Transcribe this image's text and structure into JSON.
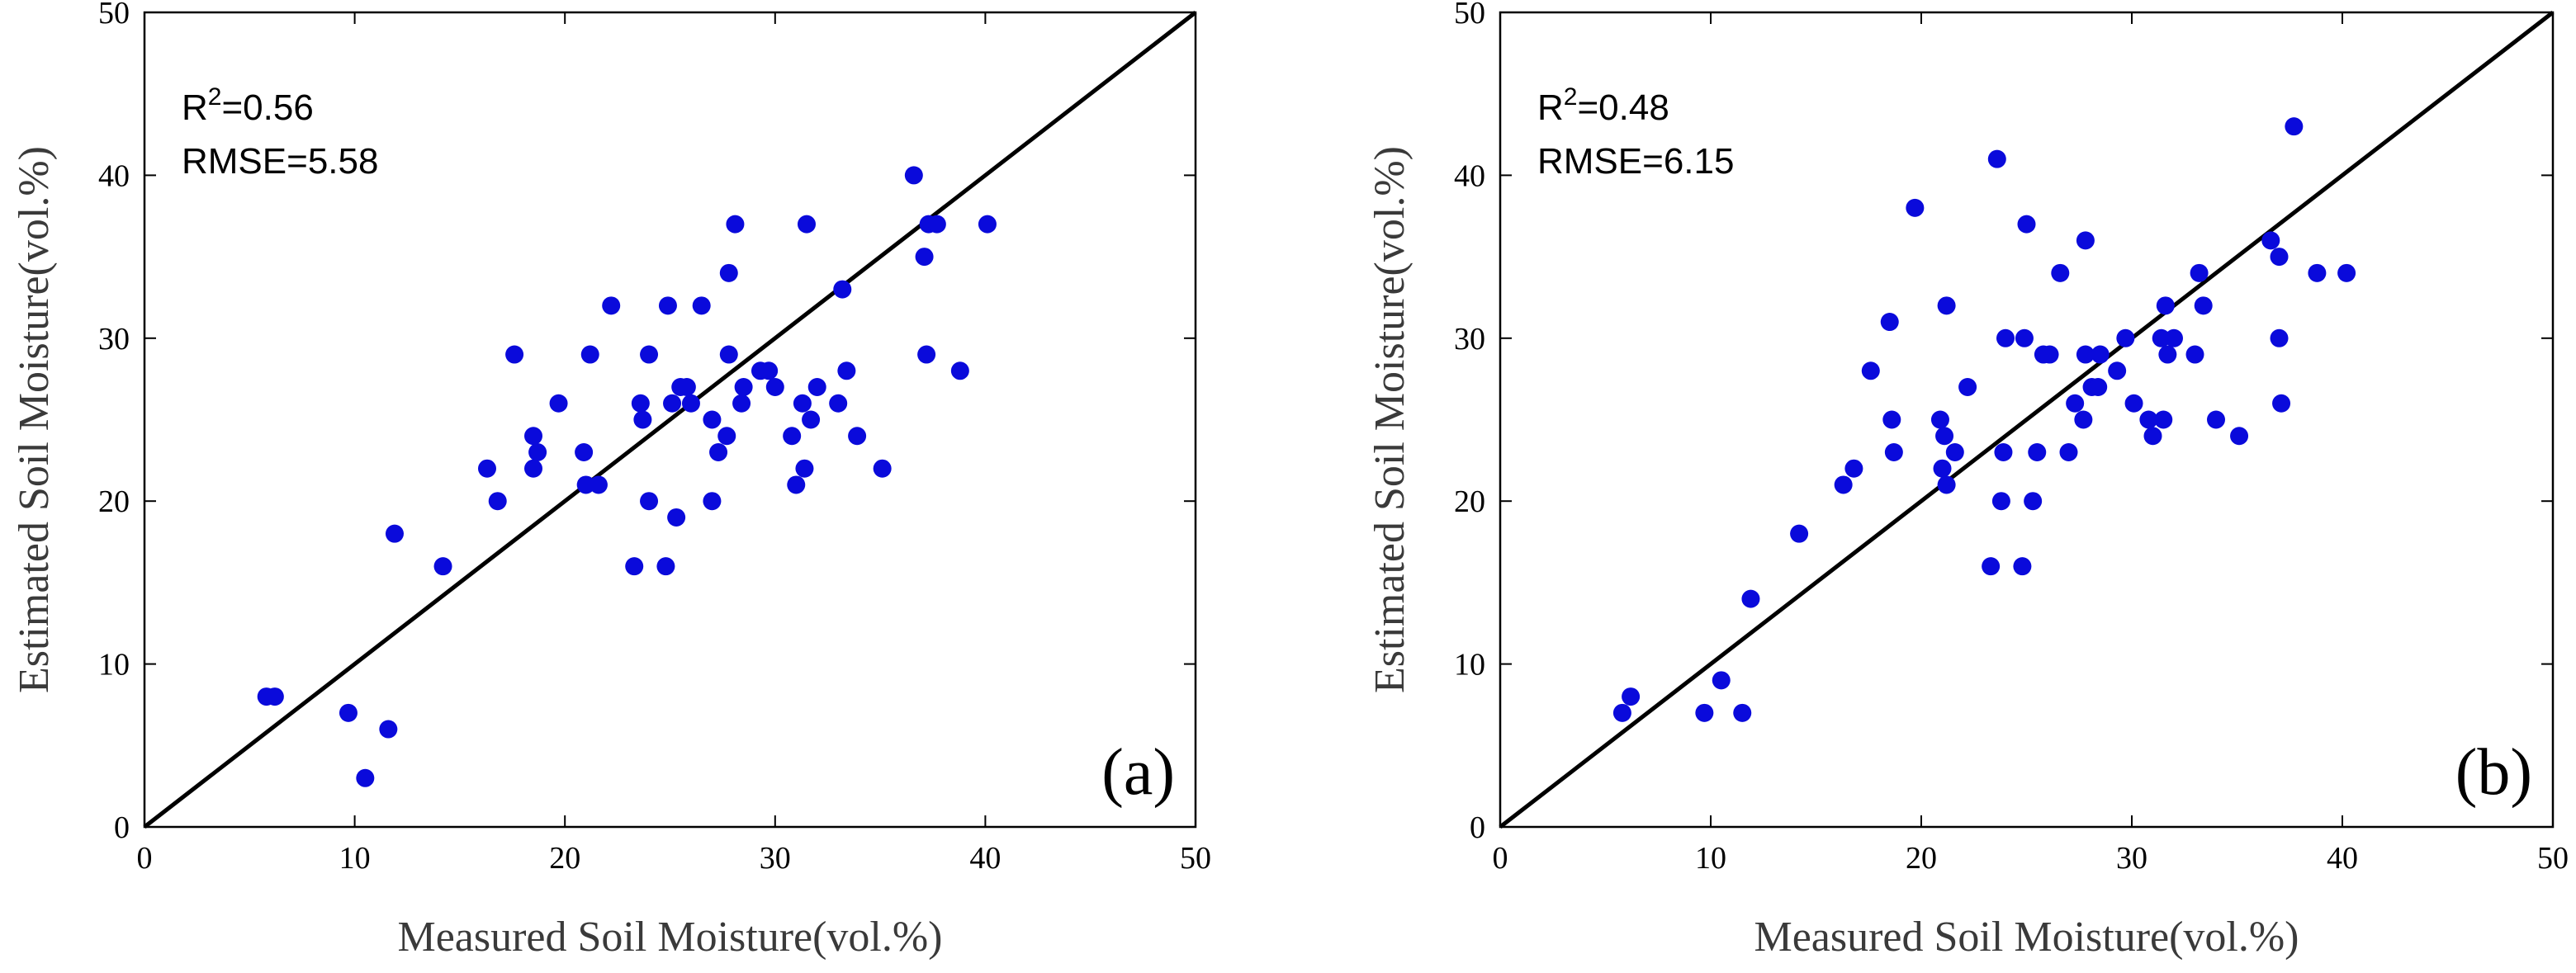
{
  "colors": {
    "points": "#0a0adb",
    "line": "#000000",
    "background": "#ffffff"
  },
  "chart_data": [
    {
      "type": "scatter",
      "panel": "(a)",
      "xlabel": "Measured Soil Moisture(vol.%)",
      "ylabel": "Estimated Soil Moisture(vol.%)",
      "xlim": [
        0,
        50
      ],
      "ylim": [
        0,
        50
      ],
      "xticks": [
        0,
        10,
        20,
        30,
        40,
        50
      ],
      "yticks": [
        0,
        10,
        20,
        30,
        40,
        50
      ],
      "r2_label": "R",
      "r2_exp": "2",
      "r2_value": "=0.56",
      "rmse_text": "RMSE=5.58",
      "reference_line": "1:1",
      "points": [
        [
          5.8,
          8
        ],
        [
          6.2,
          8
        ],
        [
          9.7,
          7
        ],
        [
          10.5,
          3
        ],
        [
          11.6,
          6
        ],
        [
          11.9,
          18
        ],
        [
          14.2,
          16
        ],
        [
          16.3,
          22
        ],
        [
          16.8,
          20
        ],
        [
          17.6,
          29
        ],
        [
          18.5,
          24
        ],
        [
          18.5,
          22
        ],
        [
          18.7,
          23
        ],
        [
          19.7,
          26
        ],
        [
          20.9,
          23
        ],
        [
          21.0,
          21
        ],
        [
          21.2,
          29
        ],
        [
          21.6,
          21
        ],
        [
          22.2,
          32
        ],
        [
          23.3,
          16
        ],
        [
          23.6,
          26
        ],
        [
          23.7,
          25
        ],
        [
          24.0,
          20
        ],
        [
          24.0,
          29
        ],
        [
          24.8,
          16
        ],
        [
          24.9,
          32
        ],
        [
          25.1,
          26
        ],
        [
          25.3,
          19
        ],
        [
          25.5,
          27
        ],
        [
          25.8,
          27
        ],
        [
          26.0,
          26
        ],
        [
          26.5,
          32
        ],
        [
          27.0,
          25
        ],
        [
          27.0,
          20
        ],
        [
          27.3,
          23
        ],
        [
          27.7,
          24
        ],
        [
          27.8,
          29
        ],
        [
          27.8,
          34
        ],
        [
          28.1,
          37
        ],
        [
          28.4,
          26
        ],
        [
          28.5,
          27
        ],
        [
          29.3,
          28
        ],
        [
          29.7,
          28
        ],
        [
          30.0,
          27
        ],
        [
          30.8,
          24
        ],
        [
          31.0,
          21
        ],
        [
          31.3,
          26
        ],
        [
          31.4,
          22
        ],
        [
          31.5,
          37
        ],
        [
          31.7,
          25
        ],
        [
          32.0,
          27
        ],
        [
          33.0,
          26
        ],
        [
          33.2,
          33
        ],
        [
          33.4,
          28
        ],
        [
          33.9,
          24
        ],
        [
          35.1,
          22
        ],
        [
          36.6,
          40
        ],
        [
          37.1,
          35
        ],
        [
          37.2,
          29
        ],
        [
          37.3,
          37
        ],
        [
          37.7,
          37
        ],
        [
          40.1,
          37
        ],
        [
          38.8,
          28
        ]
      ]
    },
    {
      "type": "scatter",
      "panel": "(b)",
      "xlabel": "Measured Soil Moisture(vol.%)",
      "ylabel": "Estimated Soil Moisture(vol.%)",
      "xlim": [
        0,
        50
      ],
      "ylim": [
        0,
        50
      ],
      "xticks": [
        0,
        10,
        20,
        30,
        40,
        50
      ],
      "yticks": [
        0,
        10,
        20,
        30,
        40,
        50
      ],
      "r2_label": "R",
      "r2_exp": "2",
      "r2_value": "=0.48",
      "rmse_text": "RMSE=6.15",
      "reference_line": "1:1",
      "points": [
        [
          5.8,
          7
        ],
        [
          6.2,
          8
        ],
        [
          9.7,
          7
        ],
        [
          10.5,
          9
        ],
        [
          11.5,
          7
        ],
        [
          11.9,
          14
        ],
        [
          14.2,
          18
        ],
        [
          16.3,
          21
        ],
        [
          16.8,
          22
        ],
        [
          17.6,
          28
        ],
        [
          18.5,
          31
        ],
        [
          18.7,
          23
        ],
        [
          18.6,
          25
        ],
        [
          19.7,
          38
        ],
        [
          20.9,
          25
        ],
        [
          21.0,
          22
        ],
        [
          21.2,
          21
        ],
        [
          21.1,
          24
        ],
        [
          21.2,
          32
        ],
        [
          21.6,
          23
        ],
        [
          22.2,
          27
        ],
        [
          23.3,
          16
        ],
        [
          23.6,
          41
        ],
        [
          23.8,
          20
        ],
        [
          23.9,
          23
        ],
        [
          24.0,
          30
        ],
        [
          24.8,
          16
        ],
        [
          24.9,
          30
        ],
        [
          25.0,
          37
        ],
        [
          25.3,
          20
        ],
        [
          25.5,
          23
        ],
        [
          25.8,
          29
        ],
        [
          26.1,
          29
        ],
        [
          26.6,
          34
        ],
        [
          27.0,
          23
        ],
        [
          27.3,
          26
        ],
        [
          27.7,
          25
        ],
        [
          27.8,
          29
        ],
        [
          27.8,
          36
        ],
        [
          28.1,
          27
        ],
        [
          28.4,
          27
        ],
        [
          28.5,
          29
        ],
        [
          29.3,
          28
        ],
        [
          29.7,
          30
        ],
        [
          30.1,
          26
        ],
        [
          30.8,
          25
        ],
        [
          31.0,
          24
        ],
        [
          31.4,
          30
        ],
        [
          31.5,
          25
        ],
        [
          31.6,
          32
        ],
        [
          31.7,
          29
        ],
        [
          32.0,
          30
        ],
        [
          33.0,
          29
        ],
        [
          33.2,
          34
        ],
        [
          33.4,
          32
        ],
        [
          34.0,
          25
        ],
        [
          35.1,
          24
        ],
        [
          36.6,
          36
        ],
        [
          37.0,
          35
        ],
        [
          37.0,
          30
        ],
        [
          37.1,
          26
        ],
        [
          37.7,
          43
        ],
        [
          38.8,
          34
        ],
        [
          40.2,
          34
        ]
      ]
    }
  ]
}
